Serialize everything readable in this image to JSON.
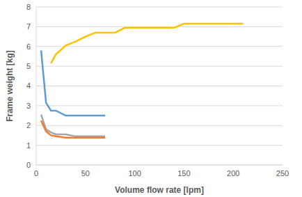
{
  "chart_data": {
    "type": "line",
    "x_label": "Volume flow rate [lpm]",
    "y_label": "Frame weight [kg]",
    "xlim": [
      0,
      250
    ],
    "xticks": [
      0,
      50,
      100,
      150,
      200,
      250
    ],
    "ylim": [
      0,
      8
    ],
    "yticks": [
      0,
      1,
      2,
      3,
      4,
      5,
      6,
      7,
      8
    ],
    "grid": true,
    "series": [
      {
        "color": "#FFC000",
        "x": [
          15,
          20,
          30,
          40,
          50,
          60,
          70,
          80,
          90,
          100,
          140,
          150,
          210
        ],
        "values": [
          5.15,
          5.6,
          6.05,
          6.25,
          6.5,
          6.7,
          6.7,
          6.7,
          6.95,
          6.95,
          6.95,
          7.15,
          7.15
        ]
      },
      {
        "color": "#5B9BD5",
        "x": [
          5,
          10,
          15,
          20,
          30,
          40,
          50,
          70
        ],
        "values": [
          5.8,
          3.15,
          2.75,
          2.75,
          2.5,
          2.5,
          2.5,
          2.5
        ]
      },
      {
        "color": "#A5A5A5",
        "x": [
          5,
          10,
          15,
          20,
          30,
          40,
          50,
          70
        ],
        "values": [
          2.55,
          1.8,
          1.65,
          1.55,
          1.55,
          1.45,
          1.45,
          1.45
        ]
      },
      {
        "color": "#ED7D31",
        "x": [
          5,
          10,
          15,
          20,
          30,
          40,
          50,
          70
        ],
        "values": [
          2.25,
          1.7,
          1.5,
          1.45,
          1.38,
          1.38,
          1.38,
          1.38
        ]
      }
    ]
  }
}
